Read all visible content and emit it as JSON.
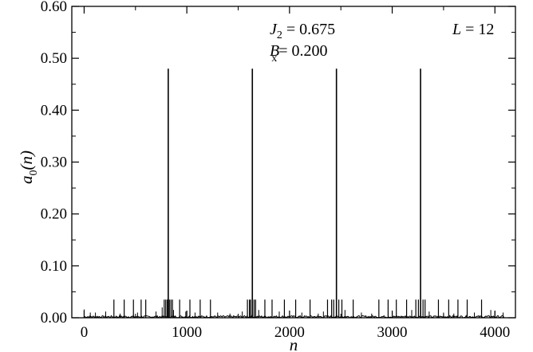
{
  "chart_data": {
    "type": "line",
    "title": "",
    "xlabel": "n",
    "ylabel": "a0(n)",
    "ylabel_parts": {
      "main": "a",
      "sub": "0",
      "rest": "(n)"
    },
    "xlim": [
      -120,
      4200
    ],
    "ylim": [
      0,
      0.6
    ],
    "xticks": [
      0,
      1000,
      2000,
      3000,
      4000
    ],
    "xtick_labels": [
      "0",
      "1000",
      "2000",
      "3000",
      "4000"
    ],
    "yticks": [
      0,
      0.1,
      0.2,
      0.3,
      0.4,
      0.5,
      0.6
    ],
    "ytick_labels": [
      "0.00",
      "0.10",
      "0.20",
      "0.30",
      "0.40",
      "0.50",
      "0.60"
    ],
    "grid": false,
    "legend": "none",
    "line_color": "#000000",
    "annotations": [
      {
        "id": "j2",
        "symbol": "J",
        "sub": "2",
        "rest": " = 0.675"
      },
      {
        "id": "bx",
        "symbol": "B",
        "sub": "x",
        "rest": "= 0.200"
      },
      {
        "id": "L",
        "symbol": "L",
        "sub": "",
        "rest": " = 12"
      }
    ],
    "series": [
      {
        "peaks": [
          {
            "n": 819,
            "value": 0.48
          },
          {
            "n": 1638,
            "value": 0.48
          },
          {
            "n": 2457,
            "value": 0.48
          },
          {
            "n": 3276,
            "value": 0.48
          }
        ],
        "medium_spikes": [
          [
            290,
            0.035
          ],
          [
            390,
            0.035
          ],
          [
            480,
            0.035
          ],
          [
            555,
            0.035
          ],
          [
            600,
            0.035
          ],
          [
            780,
            0.035
          ],
          [
            795,
            0.035
          ],
          [
            810,
            0.035
          ],
          [
            830,
            0.035
          ],
          [
            845,
            0.035
          ],
          [
            860,
            0.035
          ],
          [
            930,
            0.035
          ],
          [
            1030,
            0.035
          ],
          [
            1130,
            0.035
          ],
          [
            1230,
            0.035
          ],
          [
            1590,
            0.035
          ],
          [
            1610,
            0.035
          ],
          [
            1620,
            0.035
          ],
          [
            1655,
            0.035
          ],
          [
            1670,
            0.035
          ],
          [
            1760,
            0.035
          ],
          [
            1830,
            0.035
          ],
          [
            1950,
            0.035
          ],
          [
            2060,
            0.035
          ],
          [
            2200,
            0.035
          ],
          [
            2370,
            0.035
          ],
          [
            2410,
            0.035
          ],
          [
            2430,
            0.035
          ],
          [
            2480,
            0.035
          ],
          [
            2510,
            0.035
          ],
          [
            2620,
            0.035
          ],
          [
            2870,
            0.035
          ],
          [
            2960,
            0.035
          ],
          [
            3040,
            0.035
          ],
          [
            3140,
            0.035
          ],
          [
            3230,
            0.035
          ],
          [
            3255,
            0.035
          ],
          [
            3300,
            0.035
          ],
          [
            3320,
            0.035
          ],
          [
            3450,
            0.035
          ],
          [
            3550,
            0.035
          ],
          [
            3640,
            0.035
          ],
          [
            3730,
            0.035
          ],
          [
            3870,
            0.035
          ]
        ],
        "small_spikes": [
          [
            0,
            0.016
          ],
          [
            60,
            0.01
          ],
          [
            110,
            0.01
          ],
          [
            210,
            0.012
          ],
          [
            350,
            0.008
          ],
          [
            520,
            0.01
          ],
          [
            700,
            0.012
          ],
          [
            760,
            0.02
          ],
          [
            870,
            0.015
          ],
          [
            990,
            0.012
          ],
          [
            1080,
            0.01
          ],
          [
            1300,
            0.01
          ],
          [
            1420,
            0.008
          ],
          [
            1540,
            0.012
          ],
          [
            1700,
            0.015
          ],
          [
            1900,
            0.012
          ],
          [
            2120,
            0.01
          ],
          [
            2280,
            0.008
          ],
          [
            2330,
            0.012
          ],
          [
            2540,
            0.015
          ],
          [
            2700,
            0.01
          ],
          [
            2800,
            0.008
          ],
          [
            3000,
            0.012
          ],
          [
            3190,
            0.015
          ],
          [
            3360,
            0.012
          ],
          [
            3500,
            0.01
          ],
          [
            3600,
            0.008
          ],
          [
            3800,
            0.01
          ],
          [
            3960,
            0.015
          ],
          [
            4000,
            0.012
          ],
          [
            4080,
            0.01
          ]
        ],
        "baseline_noise": 0.004
      }
    ]
  }
}
